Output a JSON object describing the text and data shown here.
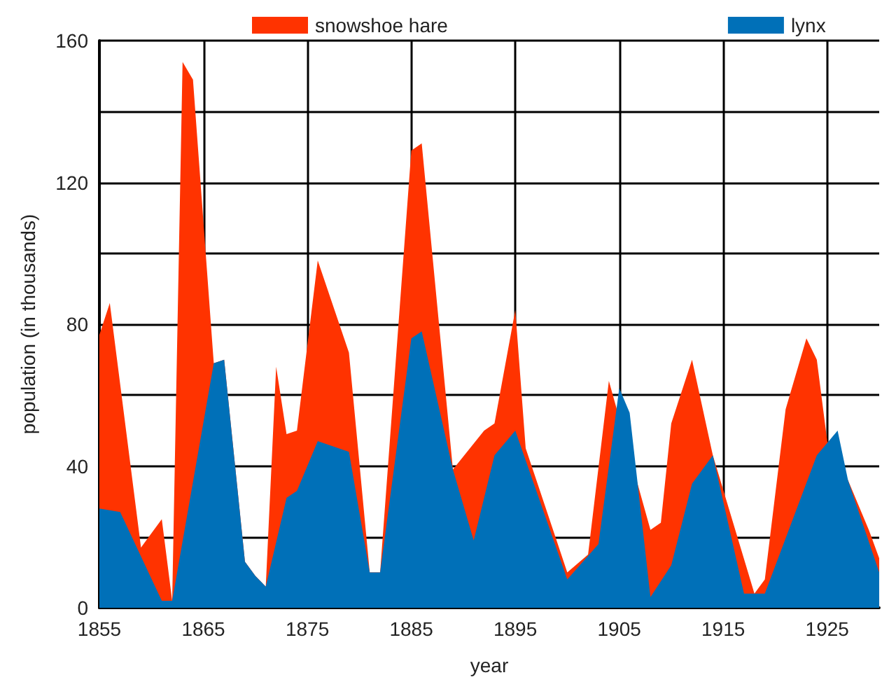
{
  "chart_data": {
    "type": "area",
    "xlabel": "year",
    "ylabel": "population (in thousands)",
    "xlim": [
      1855,
      1930
    ],
    "xticks": [
      1855,
      1865,
      1875,
      1885,
      1895,
      1905,
      1915,
      1925
    ],
    "ylim": [
      0,
      160
    ],
    "yticks": [
      0,
      {
        "value": 20,
        "label": null
      },
      40,
      {
        "value": 60,
        "label": null
      },
      80,
      {
        "value": 100,
        "label": null
      },
      120,
      {
        "value": 140,
        "label": null
      },
      160
    ],
    "grid": true,
    "legend": "top",
    "series": [
      {
        "name": "snowshoe hare",
        "color": "#ff3300",
        "x": [
          1855,
          1856,
          1859,
          1861,
          1862,
          1863,
          1864,
          1866,
          1867,
          1869,
          1870,
          1871,
          1872,
          1873,
          1874,
          1876,
          1879,
          1881,
          1882,
          1885,
          1886,
          1889,
          1892,
          1893,
          1895,
          1896,
          1900,
          1902,
          1904,
          1908,
          1909,
          1910,
          1912,
          1914,
          1918,
          1919,
          1921,
          1923,
          1924,
          1925,
          1927,
          1929,
          1930
        ],
        "values": [
          77,
          86,
          17,
          25,
          2,
          154,
          149,
          69,
          70,
          13,
          9,
          6,
          68,
          49,
          50,
          98,
          72,
          10,
          10,
          129,
          131,
          39,
          50,
          52,
          84,
          45,
          10,
          15,
          64,
          22,
          24,
          52,
          70,
          43,
          4,
          8,
          56,
          76,
          70,
          47,
          36,
          22,
          14
        ]
      },
      {
        "name": "lynx",
        "color": "#0070b8",
        "x": [
          1855,
          1857,
          1861,
          1862,
          1866,
          1867,
          1869,
          1870,
          1871,
          1873,
          1874,
          1876,
          1879,
          1881,
          1882,
          1885,
          1886,
          1889,
          1891,
          1893,
          1895,
          1900,
          1903,
          1905,
          1906,
          1908,
          1910,
          1912,
          1914,
          1917,
          1919,
          1924,
          1926,
          1927,
          1930
        ],
        "values": [
          28,
          27,
          2,
          2,
          69,
          70,
          13,
          9,
          6,
          31,
          33,
          47,
          44,
          10,
          10,
          76,
          78,
          39,
          19,
          43,
          50,
          8,
          18,
          62,
          55,
          3,
          12,
          35,
          43,
          4,
          4,
          43,
          50,
          36,
          10
        ]
      }
    ]
  }
}
